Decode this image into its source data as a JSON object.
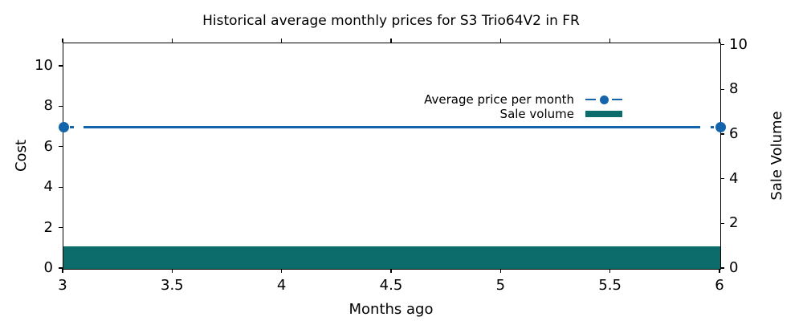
{
  "chart_data": {
    "type": "line+bar",
    "title": "Historical average monthly prices for S3 Trio64V2 in FR",
    "xlabel": "Months ago",
    "ylabel_left": "Cost",
    "ylabel_right": "Sale Volume",
    "xlim": [
      3,
      6
    ],
    "x_ticks": [
      3,
      3.5,
      4,
      4.5,
      5,
      5.5,
      6
    ],
    "x_tick_labels": [
      "3",
      "3.5",
      "4",
      "4.5",
      "5",
      "5.5",
      "6"
    ],
    "left_axis": {
      "ticks": [
        0,
        2,
        4,
        6,
        8,
        10
      ],
      "lim": [
        0,
        11.15
      ]
    },
    "right_axis": {
      "ticks": [
        0,
        2,
        4,
        6,
        8,
        10
      ],
      "lim": [
        0,
        10.1
      ]
    },
    "grid": false,
    "legend": {
      "position": "upper-right",
      "frame": false,
      "marker_after_text": true
    },
    "series": [
      {
        "name": "Average price per month",
        "type": "line",
        "axis": "left",
        "color": "#1464ab",
        "linestyle": "dashed",
        "marker": "circle",
        "x": [
          3,
          6
        ],
        "y": [
          7,
          7
        ]
      },
      {
        "name": "Sale volume",
        "type": "bar",
        "axis": "right",
        "color": "#0c6c6c",
        "x_span": [
          3,
          6
        ],
        "value": 1
      }
    ]
  }
}
